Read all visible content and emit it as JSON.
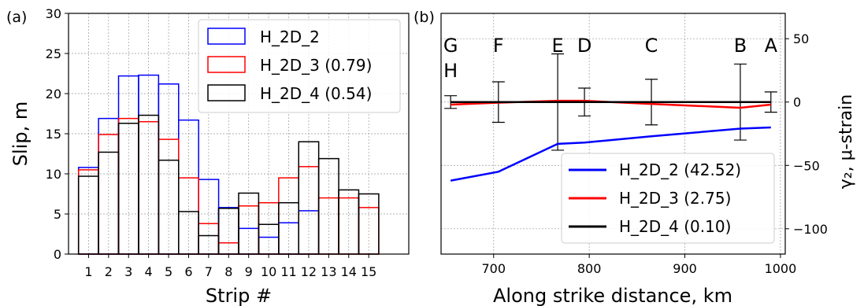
{
  "chart_data": [
    {
      "panel_label": "(a)",
      "type": "bar",
      "xlabel": "Strip #",
      "ylabel": "Slip, m",
      "categories": [
        "1",
        "2",
        "3",
        "4",
        "5",
        "6",
        "7",
        "8",
        "9",
        "10",
        "11",
        "12",
        "13",
        "14",
        "15"
      ],
      "ylim": [
        0,
        30
      ],
      "yticks": [
        0,
        5,
        10,
        15,
        20,
        25,
        30
      ],
      "grid": true,
      "legend_position": "top-right",
      "series": [
        {
          "name": "H_2D_2",
          "color": "#0000ff",
          "values": [
            10.8,
            16.9,
            22.2,
            22.3,
            21.2,
            16.7,
            9.3,
            5.8,
            3.2,
            2.1,
            3.9,
            5.4,
            0,
            0,
            0
          ]
        },
        {
          "name": "H_2D_3 (0.79)",
          "color": "#ff0000",
          "values": [
            10.5,
            14.9,
            16.9,
            16.5,
            14.3,
            9.5,
            3.8,
            1.4,
            6.0,
            6.4,
            9.5,
            10.9,
            7.0,
            7.0,
            5.8
          ]
        },
        {
          "name": "H_2D_4 (0.54)",
          "color": "#000000",
          "values": [
            9.7,
            12.7,
            16.3,
            17.3,
            11.7,
            5.3,
            2.3,
            5.7,
            7.6,
            3.7,
            6.4,
            14.0,
            11.9,
            8.0,
            7.5
          ]
        }
      ]
    },
    {
      "panel_label": "(b)",
      "type": "line",
      "xlabel": "Along strike distance, km",
      "ylabel": "γ₂, μ-strain",
      "xlim": [
        645,
        1005
      ],
      "ylim": [
        -120,
        70
      ],
      "xticks": [
        700,
        800,
        900,
        1000
      ],
      "yticks": [
        50,
        0,
        -50,
        -100
      ],
      "y_axis_side": "right",
      "grid": true,
      "legend_position": "lower-right",
      "series": [
        {
          "name": "H_2D_2 (42.52)",
          "color": "#0000ff",
          "x": [
            655,
            705,
            767,
            795,
            865,
            958,
            990
          ],
          "y": [
            -62,
            -55,
            -33,
            -32,
            -27,
            -21,
            -20
          ]
        },
        {
          "name": "H_2D_3 (2.75)",
          "color": "#ff0000",
          "x": [
            655,
            705,
            767,
            795,
            865,
            958,
            990
          ],
          "y": [
            -2,
            -0.5,
            1,
            1,
            -1.5,
            -4.5,
            -2
          ]
        },
        {
          "name": "H_2D_4 (0.10)",
          "color": "#000000",
          "x": [
            655,
            705,
            767,
            795,
            865,
            958,
            990
          ],
          "y": [
            0,
            0,
            0,
            0,
            0,
            0,
            0
          ]
        }
      ],
      "error_bars": {
        "x": [
          655,
          705,
          767,
          795,
          865,
          958,
          990
        ],
        "y": [
          0,
          0,
          0,
          0,
          0,
          0,
          0
        ],
        "err": [
          5,
          16,
          38,
          11,
          18,
          30,
          8
        ]
      },
      "station_labels": [
        {
          "text": "G",
          "x": 655,
          "row": 1
        },
        {
          "text": "H",
          "x": 655,
          "row": 2
        },
        {
          "text": "F",
          "x": 705,
          "row": 1
        },
        {
          "text": "E",
          "x": 767,
          "row": 1
        },
        {
          "text": "D",
          "x": 795,
          "row": 1
        },
        {
          "text": "C",
          "x": 865,
          "row": 1
        },
        {
          "text": "B",
          "x": 958,
          "row": 1
        },
        {
          "text": "A",
          "x": 990,
          "row": 1
        }
      ]
    }
  ]
}
